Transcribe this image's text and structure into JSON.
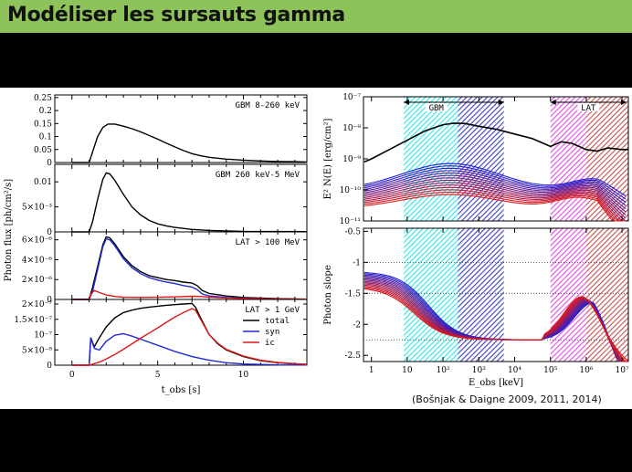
{
  "slide": {
    "title": "Modéliser les sursauts gamma",
    "header_color": "#8ec25a",
    "citation": "(Bošnjak & Daigne 2009, 2011, 2014)"
  },
  "chart_data": [
    {
      "type": "line",
      "panels": [
        {
          "label": "GBM 8-260 keV",
          "yticks": [
            "0",
            "0.05",
            "0.1",
            "0.15",
            "0.2",
            "0.25"
          ],
          "ylim": [
            0,
            0.26
          ],
          "series": [
            {
              "color": "#000000",
              "x": [
                0,
                1.0,
                1.2,
                1.5,
                1.8,
                2.1,
                2.5,
                3,
                3.5,
                4,
                4.5,
                5,
                5.5,
                6,
                6.5,
                7,
                7.5,
                8,
                9,
                10,
                11,
                12,
                13,
                13.7
              ],
              "y": [
                0,
                0,
                0.04,
                0.1,
                0.135,
                0.148,
                0.148,
                0.14,
                0.13,
                0.118,
                0.104,
                0.09,
                0.075,
                0.06,
                0.046,
                0.034,
                0.026,
                0.02,
                0.013,
                0.009,
                0.006,
                0.004,
                0.003,
                0.002
              ]
            }
          ]
        },
        {
          "label": "GBM 260 keV-5 MeV",
          "yticks": [
            "0",
            "5×10⁻³",
            "0.01"
          ],
          "ylim": [
            0,
            0.0135
          ],
          "series": [
            {
              "color": "#000000",
              "x": [
                0,
                1.0,
                1.2,
                1.5,
                1.8,
                2.0,
                2.2,
                2.5,
                3,
                3.5,
                4,
                4.5,
                5,
                5.5,
                6,
                6.5,
                7,
                8,
                9,
                10,
                13.7
              ],
              "y": [
                0,
                0,
                0.002,
                0.0065,
                0.0105,
                0.0118,
                0.0116,
                0.0103,
                0.0075,
                0.005,
                0.0034,
                0.0023,
                0.0016,
                0.0012,
                0.0009,
                0.0007,
                0.0005,
                0.0003,
                0.0002,
                0.0001,
                5e-05
              ]
            }
          ]
        },
        {
          "label": "LAT > 100 MeV",
          "yticks": [
            "0",
            "2×10⁻⁶",
            "4×10⁻⁶",
            "6×10⁻⁶"
          ],
          "ylim": [
            0,
            6.8e-06
          ],
          "series": [
            {
              "color": "#000000",
              "x": [
                0,
                1.0,
                1.2,
                1.5,
                1.8,
                2.0,
                2.2,
                2.5,
                3,
                3.5,
                4,
                4.5,
                5,
                5.5,
                6,
                6.5,
                7,
                7.3,
                7.6,
                8,
                9,
                10,
                12,
                13.7
              ],
              "y": [
                0,
                0,
                1.2e-06,
                3.3e-06,
                5.5e-06,
                6.3e-06,
                6.2e-06,
                5.6e-06,
                4.3e-06,
                3.4e-06,
                2.8e-06,
                2.4e-06,
                2.2e-06,
                2e-06,
                1.9e-06,
                1.75e-06,
                1.65e-06,
                1.4e-06,
                9e-07,
                6e-07,
                3.5e-07,
                2e-07,
                8e-08,
                3e-08
              ]
            },
            {
              "color": "#1f2ad6",
              "x": [
                0,
                1.0,
                1.2,
                1.5,
                1.8,
                2.0,
                2.2,
                2.5,
                3,
                3.5,
                4,
                4.5,
                5,
                5.5,
                6,
                6.5,
                7,
                7.3,
                7.6,
                8,
                9,
                10,
                12,
                13.7
              ],
              "y": [
                0,
                0,
                8e-07,
                3e-06,
                5.3e-06,
                6.1e-06,
                6e-06,
                5.4e-06,
                4.1e-06,
                3.2e-06,
                2.6e-06,
                2.2e-06,
                1.95e-06,
                1.75e-06,
                1.6e-06,
                1.4e-06,
                1.25e-06,
                1e-06,
                5.5e-07,
                3.5e-07,
                2e-07,
                1.2e-07,
                5e-08,
                2e-08
              ]
            },
            {
              "color": "#e01818",
              "x": [
                0,
                1.0,
                1.1,
                1.3,
                1.6,
                2.0,
                2.5,
                3,
                4,
                5,
                6,
                7,
                7.5,
                8,
                9,
                10,
                12,
                13.7
              ],
              "y": [
                0,
                0,
                5e-07,
                9e-07,
                7e-07,
                4.5e-07,
                3e-07,
                2.2e-07,
                2e-07,
                2.2e-07,
                2.6e-07,
                3.2e-07,
                3e-07,
                2.2e-07,
                1.5e-07,
                1e-07,
                5e-08,
                2e-08
              ]
            }
          ]
        },
        {
          "label": "LAT > 1 GeV",
          "yticks": [
            "0",
            "5×10⁻⁸",
            "10⁻⁷",
            "1.5×10⁻⁷",
            "2×10⁻⁷"
          ],
          "ylim": [
            0,
            2.15e-07
          ],
          "legend": [
            {
              "name": "total",
              "color": "#000000"
            },
            {
              "name": "syn",
              "color": "#1f2ad6"
            },
            {
              "name": "ic",
              "color": "#e01818"
            }
          ],
          "series": [
            {
              "color": "#000000",
              "x": [
                0,
                1.0,
                1.1,
                1.3,
                1.6,
                2.0,
                2.5,
                3,
                3.5,
                4,
                4.5,
                5,
                5.5,
                6,
                6.5,
                7,
                7.2,
                7.5,
                8,
                8.5,
                9,
                10,
                11,
                12,
                13,
                13.7
              ],
              "y": [
                0,
                0,
                9e-08,
                6e-08,
                9e-08,
                1.25e-07,
                1.55e-07,
                1.72e-07,
                1.8e-07,
                1.86e-07,
                1.9e-07,
                1.93e-07,
                1.96e-07,
                1.98e-07,
                2e-07,
                2.02e-07,
                1.9e-07,
                1.55e-07,
                1e-07,
                7e-08,
                5e-08,
                2.8e-08,
                1.5e-08,
                8e-09,
                4e-09,
                2e-09
              ]
            },
            {
              "color": "#1f2ad6",
              "x": [
                0,
                1.0,
                1.1,
                1.3,
                1.6,
                2.0,
                2.5,
                3,
                3.5,
                4,
                5,
                6,
                7,
                8,
                9,
                10,
                12,
                13.7
              ],
              "y": [
                0,
                0,
                9e-08,
                5.5e-08,
                5e-08,
                7.8e-08,
                9.8e-08,
                1.03e-07,
                9.5e-08,
                8.5e-08,
                6.5e-08,
                4.5e-08,
                2.8e-08,
                1.6e-08,
                8e-09,
                4e-09,
                1e-09,
                5e-10
              ]
            },
            {
              "color": "#e01818",
              "x": [
                0,
                1.0,
                1.3,
                1.6,
                2.0,
                2.5,
                3,
                3.5,
                4,
                4.5,
                5,
                5.5,
                6,
                6.5,
                7,
                7.2,
                7.5,
                8,
                8.5,
                9,
                10,
                11,
                12,
                13,
                13.7
              ],
              "y": [
                0,
                0,
                5e-09,
                1e-08,
                2e-08,
                3.5e-08,
                5.2e-08,
                7e-08,
                8.8e-08,
                1.05e-07,
                1.22e-07,
                1.4e-07,
                1.57e-07,
                1.72e-07,
                1.85e-07,
                1.8e-07,
                1.5e-07,
                1e-07,
                7.2e-08,
                5.2e-08,
                3e-08,
                1.6e-08,
                9e-09,
                5e-09,
                3e-09
              ]
            }
          ]
        }
      ],
      "xlim": [
        -1,
        13.7
      ],
      "xticks": [
        0,
        5,
        10
      ],
      "xlabel": "t_obs [s]",
      "ylabel": "Photon flux [ph/cm²/s]"
    },
    {
      "type": "line",
      "x_scale": "log",
      "xlim": [
        0.6,
        15000000
      ],
      "xticks": [
        "1",
        "10",
        "10²",
        "10³",
        "10⁴",
        "10⁵",
        "10⁶",
        "10⁷"
      ],
      "xlabel": "E_obs [keV]",
      "bands": [
        {
          "label": "GBM",
          "from": 8,
          "to": 260,
          "color": "#19e0e0"
        },
        {
          "label": "",
          "from": 260,
          "to": 5000,
          "color": "#2a2ab8"
        },
        {
          "label": "LAT",
          "from": 100000,
          "to": 1000000,
          "color": "#d83ad8"
        },
        {
          "label": "",
          "from": 1000000,
          "to": 15000000,
          "color": "#b84040"
        }
      ],
      "top_panel": {
        "ylabel": "E² N(E) [erg/cm²]",
        "y_scale": "log",
        "yticks": [
          "10⁻¹¹",
          "10⁻¹⁰",
          "10⁻⁹",
          "10⁻⁸",
          "10⁻⁷"
        ],
        "ylim_log10": [
          -11,
          -7
        ],
        "total_curve": {
          "color": "#000000",
          "log10E": [
            -0.2,
            0,
            0.5,
            1,
            1.5,
            2,
            2.3,
            2.6,
            3,
            3.5,
            4,
            4.5,
            5,
            5.3,
            5.6,
            6,
            6.3,
            6.6,
            7,
            7.2
          ],
          "log10F": [
            -9.1,
            -9.0,
            -8.7,
            -8.4,
            -8.1,
            -7.9,
            -7.85,
            -7.86,
            -7.95,
            -8.05,
            -8.2,
            -8.35,
            -8.6,
            -8.45,
            -8.5,
            -8.7,
            -8.75,
            -8.65,
            -8.7,
            -8.7
          ]
        },
        "curves_count": 14,
        "curve_color_start": "#1f1fd6",
        "curve_color_end": "#e01818"
      },
      "bottom_panel": {
        "ylabel": "Photon slope",
        "yticks": [
          "-2.5",
          "-2",
          "-1.5",
          "-1",
          "-0.5"
        ],
        "ylim": [
          -2.6,
          -0.45
        ],
        "dotted_lines": [
          -1.0,
          -1.5,
          -2.25
        ],
        "curves_count": 14,
        "curve_color_start": "#1f1fd6",
        "curve_color_end": "#e01818"
      }
    }
  ]
}
